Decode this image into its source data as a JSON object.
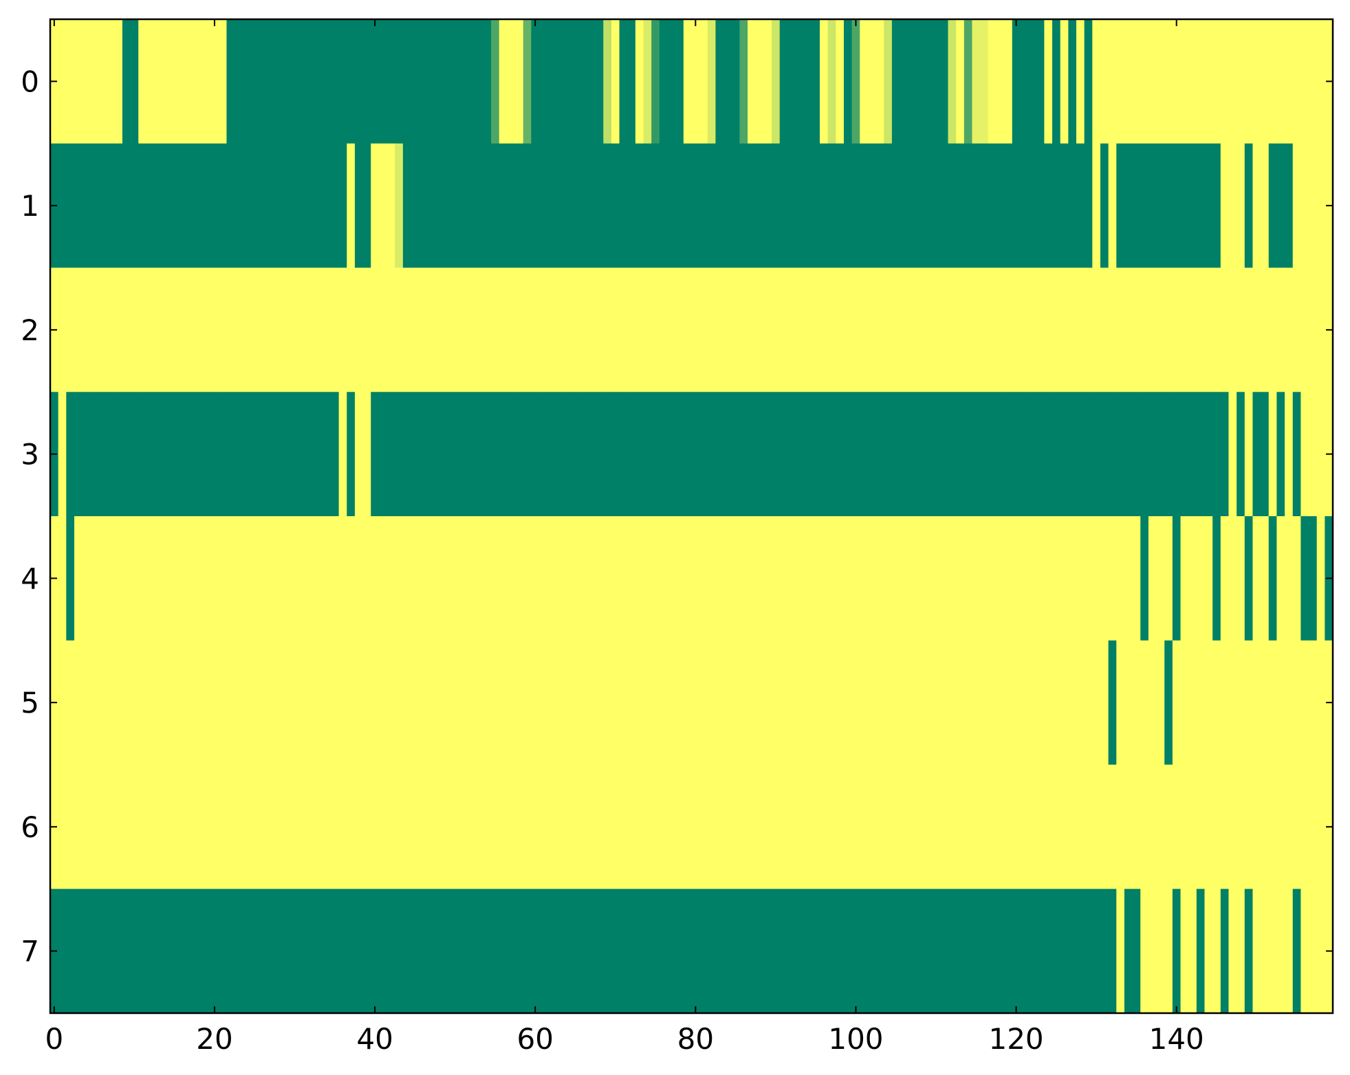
{
  "chart_data": {
    "type": "heatmap",
    "colormap": [
      "#008066",
      "#ffff66"
    ],
    "xlim": [
      -0.5,
      159.5
    ],
    "ylim": [
      7.5,
      -0.5
    ],
    "xticks": [
      0,
      20,
      40,
      60,
      80,
      100,
      120,
      140
    ],
    "yticks": [
      0,
      1,
      2,
      3,
      4,
      5,
      6,
      7
    ],
    "values": [
      [
        1,
        1,
        1,
        1,
        1,
        1,
        1,
        1,
        1,
        0,
        0,
        1,
        1,
        1,
        1,
        1,
        1,
        1,
        1,
        1,
        1,
        1,
        0,
        0,
        0,
        0,
        0,
        0,
        0,
        0,
        0,
        0,
        0,
        0,
        0,
        0,
        0,
        0,
        0,
        0,
        0,
        0,
        0,
        0,
        0,
        0,
        0,
        0,
        0,
        0,
        0,
        0,
        0,
        0,
        0,
        0.3,
        1,
        1,
        1,
        0.4,
        0,
        0,
        0,
        0,
        0,
        0,
        0,
        0,
        0,
        0.75,
        1,
        0,
        0,
        1,
        0.85,
        0.2,
        0,
        0,
        0,
        1,
        1,
        1,
        0.85,
        0,
        0,
        0,
        0.3,
        1,
        1,
        1,
        0.8,
        0,
        0,
        0,
        0,
        0,
        1,
        0.8,
        1,
        0,
        0.3,
        1,
        1,
        1,
        0.8,
        0,
        0,
        0,
        0,
        0,
        0,
        0,
        0.8,
        1,
        0.3,
        0.9,
        0.9,
        1,
        1,
        1,
        0,
        0,
        0,
        0,
        1,
        0,
        1,
        0,
        1,
        0,
        1,
        1,
        1,
        1,
        1,
        1,
        1,
        1,
        1,
        1,
        1,
        1,
        1,
        1,
        1,
        1,
        1,
        1,
        1,
        1,
        1,
        1,
        1,
        1,
        1,
        1,
        1,
        1,
        1,
        1
      ],
      [
        0,
        0,
        0,
        0,
        0,
        0,
        0,
        0,
        0,
        0,
        0,
        0,
        0,
        0,
        0,
        0,
        0,
        0,
        0,
        0,
        0,
        0,
        0,
        0,
        0,
        0,
        0,
        0,
        0,
        0,
        0,
        0,
        0,
        0,
        0,
        0,
        0,
        1,
        0,
        0,
        1,
        1,
        1,
        0.85,
        0,
        0,
        0,
        0,
        0,
        0,
        0,
        0,
        0,
        0,
        0,
        0,
        0,
        0,
        0,
        0,
        0,
        0,
        0,
        0,
        0,
        0,
        0,
        0,
        0,
        0,
        0,
        0,
        0,
        0,
        0,
        0,
        0,
        0,
        0,
        0,
        0,
        0,
        0,
        0,
        0,
        0,
        0,
        0,
        0,
        0,
        0,
        0,
        0,
        0,
        0,
        0,
        0,
        0,
        0,
        0,
        0,
        0,
        0,
        0,
        0,
        0,
        0,
        0,
        0,
        0,
        0,
        0,
        0,
        0,
        0,
        0,
        0,
        0,
        0,
        0,
        0,
        0,
        0,
        0,
        0,
        0,
        0,
        0,
        0,
        0,
        1,
        0,
        1,
        0,
        0,
        0,
        0,
        0,
        0,
        0,
        0,
        0,
        0,
        0,
        0,
        0,
        1,
        1,
        1,
        0,
        1,
        1,
        0,
        0,
        0,
        1,
        1,
        1,
        1,
        1
      ],
      [
        1,
        1,
        1,
        1,
        1,
        1,
        1,
        1,
        1,
        1,
        1,
        1,
        1,
        1,
        1,
        1,
        1,
        1,
        1,
        1,
        1,
        1,
        1,
        1,
        1,
        1,
        1,
        1,
        1,
        1,
        1,
        1,
        1,
        1,
        1,
        1,
        1,
        1,
        1,
        1,
        1,
        1,
        1,
        1,
        1,
        1,
        1,
        1,
        1,
        1,
        1,
        1,
        1,
        1,
        1,
        1,
        1,
        1,
        1,
        1,
        1,
        1,
        1,
        1,
        1,
        1,
        1,
        1,
        1,
        1,
        1,
        1,
        1,
        1,
        1,
        1,
        1,
        1,
        1,
        1,
        1,
        1,
        1,
        1,
        1,
        1,
        1,
        1,
        1,
        1,
        1,
        1,
        1,
        1,
        1,
        1,
        1,
        1,
        1,
        1,
        1,
        1,
        1,
        1,
        1,
        1,
        1,
        1,
        1,
        1,
        1,
        1,
        1,
        1,
        1,
        1,
        1,
        1,
        1,
        1,
        1,
        1,
        1,
        1,
        1,
        1,
        1,
        1,
        1,
        1,
        1,
        1,
        1,
        1,
        1,
        1,
        1,
        1,
        1,
        1,
        1,
        1,
        1,
        1,
        1,
        1,
        1,
        1,
        1,
        1,
        1,
        1,
        1,
        1,
        1,
        1,
        1,
        1,
        1,
        1
      ],
      [
        0,
        1,
        0,
        0,
        0,
        0,
        0,
        0,
        0,
        0,
        0,
        0,
        0,
        0,
        0,
        0,
        0,
        0,
        0,
        0,
        0,
        0,
        0,
        0,
        0,
        0,
        0,
        0,
        0,
        0,
        0,
        0,
        0,
        0,
        0,
        0,
        1,
        0,
        1,
        1,
        0,
        0,
        0,
        0,
        0,
        0,
        0,
        0,
        0,
        0,
        0,
        0,
        0,
        0,
        0,
        0,
        0,
        0,
        0,
        0,
        0,
        0,
        0,
        0,
        0,
        0,
        0,
        0,
        0,
        0,
        0,
        0,
        0,
        0,
        0,
        0,
        0,
        0,
        0,
        0,
        0,
        0,
        0,
        0,
        0,
        0,
        0,
        0,
        0,
        0,
        0,
        0,
        0,
        0,
        0,
        0,
        0,
        0,
        0,
        0,
        0,
        0,
        0,
        0,
        0,
        0,
        0,
        0,
        0,
        0,
        0,
        0,
        0,
        0,
        0,
        0,
        0,
        0,
        0,
        0,
        0,
        0,
        0,
        0,
        0,
        0,
        0,
        0,
        0,
        0,
        0,
        0,
        0,
        0,
        0,
        0,
        0,
        0,
        0,
        0,
        0,
        0,
        0,
        0,
        0,
        0,
        0,
        1,
        0,
        1,
        0,
        0,
        1,
        0,
        1,
        0,
        1,
        1,
        1,
        1
      ],
      [
        1,
        1,
        0,
        1,
        1,
        1,
        1,
        1,
        1,
        1,
        1,
        1,
        1,
        1,
        1,
        1,
        1,
        1,
        1,
        1,
        1,
        1,
        1,
        1,
        1,
        1,
        1,
        1,
        1,
        1,
        1,
        1,
        1,
        1,
        1,
        1,
        1,
        1,
        1,
        1,
        1,
        1,
        1,
        1,
        1,
        1,
        1,
        1,
        1,
        1,
        1,
        1,
        1,
        1,
        1,
        1,
        1,
        1,
        1,
        1,
        1,
        1,
        1,
        1,
        1,
        1,
        1,
        1,
        1,
        1,
        1,
        1,
        1,
        1,
        1,
        1,
        1,
        1,
        1,
        1,
        1,
        1,
        1,
        1,
        1,
        1,
        1,
        1,
        1,
        1,
        1,
        1,
        1,
        1,
        1,
        1,
        1,
        1,
        1,
        1,
        1,
        1,
        1,
        1,
        1,
        1,
        1,
        1,
        1,
        1,
        1,
        1,
        1,
        1,
        1,
        1,
        1,
        1,
        1,
        1,
        1,
        1,
        1,
        1,
        1,
        1,
        1,
        1,
        1,
        1,
        1,
        1,
        1,
        1,
        1,
        1,
        0,
        1,
        1,
        1,
        0,
        1,
        1,
        1,
        1,
        0,
        1,
        1,
        1,
        0,
        1,
        1,
        0,
        1,
        1,
        1,
        0,
        0,
        1,
        0
      ],
      [
        1,
        1,
        1,
        1,
        1,
        1,
        1,
        1,
        1,
        1,
        1,
        1,
        1,
        1,
        1,
        1,
        1,
        1,
        1,
        1,
        1,
        1,
        1,
        1,
        1,
        1,
        1,
        1,
        1,
        1,
        1,
        1,
        1,
        1,
        1,
        1,
        1,
        1,
        1,
        1,
        1,
        1,
        1,
        1,
        1,
        1,
        1,
        1,
        1,
        1,
        1,
        1,
        1,
        1,
        1,
        1,
        1,
        1,
        1,
        1,
        1,
        1,
        1,
        1,
        1,
        1,
        1,
        1,
        1,
        1,
        1,
        1,
        1,
        1,
        1,
        1,
        1,
        1,
        1,
        1,
        1,
        1,
        1,
        1,
        1,
        1,
        1,
        1,
        1,
        1,
        1,
        1,
        1,
        1,
        1,
        1,
        1,
        1,
        1,
        1,
        1,
        1,
        1,
        1,
        1,
        1,
        1,
        1,
        1,
        1,
        1,
        1,
        1,
        1,
        1,
        1,
        1,
        1,
        1,
        1,
        1,
        1,
        1,
        1,
        1,
        1,
        1,
        1,
        1,
        1,
        1,
        1,
        0,
        1,
        1,
        1,
        1,
        1,
        1,
        0,
        1,
        1,
        1,
        1,
        1,
        1,
        1,
        1,
        1,
        1,
        1,
        1,
        1,
        1,
        1,
        1,
        1,
        1,
        1,
        1
      ],
      [
        1,
        1,
        1,
        1,
        1,
        1,
        1,
        1,
        1,
        1,
        1,
        1,
        1,
        1,
        1,
        1,
        1,
        1,
        1,
        1,
        1,
        1,
        1,
        1,
        1,
        1,
        1,
        1,
        1,
        1,
        1,
        1,
        1,
        1,
        1,
        1,
        1,
        1,
        1,
        1,
        1,
        1,
        1,
        1,
        1,
        1,
        1,
        1,
        1,
        1,
        1,
        1,
        1,
        1,
        1,
        1,
        1,
        1,
        1,
        1,
        1,
        1,
        1,
        1,
        1,
        1,
        1,
        1,
        1,
        1,
        1,
        1,
        1,
        1,
        1,
        1,
        1,
        1,
        1,
        1,
        1,
        1,
        1,
        1,
        1,
        1,
        1,
        1,
        1,
        1,
        1,
        1,
        1,
        1,
        1,
        1,
        1,
        1,
        1,
        1,
        1,
        1,
        1,
        1,
        1,
        1,
        1,
        1,
        1,
        1,
        1,
        1,
        1,
        1,
        1,
        1,
        1,
        1,
        1,
        1,
        1,
        1,
        1,
        1,
        1,
        1,
        1,
        1,
        1,
        1,
        1,
        1,
        1,
        1,
        1,
        1,
        1,
        1,
        1,
        1,
        1,
        1,
        1,
        1,
        1,
        1,
        1,
        1,
        1,
        1,
        1,
        1,
        1,
        1,
        1,
        1,
        1,
        1,
        1,
        1
      ],
      [
        0,
        0,
        0,
        0,
        0,
        0,
        0,
        0,
        0,
        0,
        0,
        0,
        0,
        0,
        0,
        0,
        0,
        0,
        0,
        0,
        0,
        0,
        0,
        0,
        0,
        0,
        0,
        0,
        0,
        0,
        0,
        0,
        0,
        0,
        0,
        0,
        0,
        0,
        0,
        0,
        0,
        0,
        0,
        0,
        0,
        0,
        0,
        0,
        0,
        0,
        0,
        0,
        0,
        0,
        0,
        0,
        0,
        0,
        0,
        0,
        0,
        0,
        0,
        0,
        0,
        0,
        0,
        0,
        0,
        0,
        0,
        0,
        0,
        0,
        0,
        0,
        0,
        0,
        0,
        0,
        0,
        0,
        0,
        0,
        0,
        0,
        0,
        0,
        0,
        0,
        0,
        0,
        0,
        0,
        0,
        0,
        0,
        0,
        0,
        0,
        0,
        0,
        0,
        0,
        0,
        0,
        0,
        0,
        0,
        0,
        0,
        0,
        0,
        0,
        0,
        0,
        0,
        0,
        0,
        0,
        0,
        0,
        0,
        0,
        0,
        0,
        0,
        0,
        0,
        0,
        0,
        0,
        0,
        1,
        0,
        0,
        1,
        1,
        1,
        1,
        0,
        1,
        1,
        0,
        1,
        1,
        0,
        1,
        1,
        0,
        1,
        1,
        1,
        1,
        1,
        0,
        1,
        1,
        1,
        1
      ]
    ]
  }
}
